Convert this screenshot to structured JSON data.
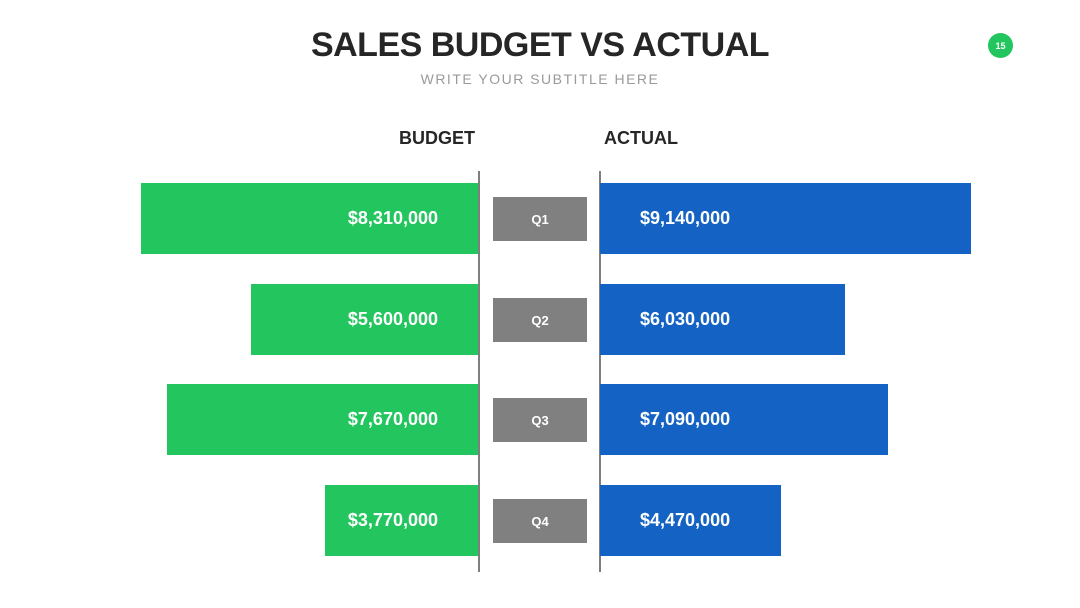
{
  "slide": {
    "title": "SALES BUDGET VS ACTUAL",
    "subtitle": "WRITE YOUR SUBTITLE HERE",
    "page_number": "15"
  },
  "colors": {
    "budget": "#22c55e",
    "actual": "#1463c4",
    "category": "#808080",
    "badge": "#22c55e"
  },
  "chart_data": {
    "type": "bar",
    "orientation": "horizontal-butterfly",
    "categories": [
      "Q1",
      "Q2",
      "Q3",
      "Q4"
    ],
    "series": [
      {
        "name": "BUDGET",
        "values": [
          8310000,
          5600000,
          7670000,
          3770000
        ],
        "labels": [
          "$8,310,000",
          "$5,600,000",
          "$7,670,000",
          "$3,770,000"
        ]
      },
      {
        "name": "ACTUAL",
        "values": [
          9140000,
          6030000,
          7090000,
          4470000
        ],
        "labels": [
          "$9,140,000",
          "$6,030,000",
          "$7,090,000",
          "$4,470,000"
        ]
      }
    ],
    "grid": false
  }
}
